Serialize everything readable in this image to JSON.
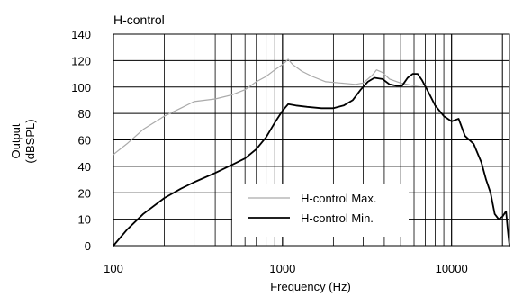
{
  "chart_data": {
    "type": "line",
    "title": "H-control",
    "xlabel": "Frequency (Hz)",
    "ylabel_line1": "Output",
    "ylabel_line2": "(dBSPL)",
    "x_scale": "log",
    "xlim": [
      100,
      22000
    ],
    "x_ticks": [
      {
        "value": 100,
        "label": "100"
      },
      {
        "value": 1000,
        "label": "1000"
      },
      {
        "value": 10000,
        "label": "10000"
      }
    ],
    "y_ticks": [
      {
        "value": 0,
        "label": "0"
      },
      {
        "value": 10,
        "label": "10"
      },
      {
        "value": 20,
        "label": "20"
      },
      {
        "value": 40,
        "label": "40"
      },
      {
        "value": 60,
        "label": "60"
      },
      {
        "value": 80,
        "label": "80"
      },
      {
        "value": 100,
        "label": "100"
      },
      {
        "value": 120,
        "label": "120"
      },
      {
        "value": 140,
        "label": "140"
      }
    ],
    "grid": true,
    "legend_position": "bottom-center",
    "series": [
      {
        "name": "H-control Max.",
        "color": "#aaaaaa",
        "points": [
          [
            100,
            49
          ],
          [
            120,
            57
          ],
          [
            150,
            68
          ],
          [
            200,
            78
          ],
          [
            250,
            84
          ],
          [
            300,
            89
          ],
          [
            400,
            91
          ],
          [
            500,
            94
          ],
          [
            600,
            98
          ],
          [
            700,
            104
          ],
          [
            800,
            108
          ],
          [
            900,
            113
          ],
          [
            1000,
            117
          ],
          [
            1080,
            121
          ],
          [
            1150,
            117
          ],
          [
            1300,
            112
          ],
          [
            1500,
            108
          ],
          [
            1800,
            104
          ],
          [
            2200,
            103
          ],
          [
            2700,
            102
          ],
          [
            3000,
            103
          ],
          [
            3400,
            109
          ],
          [
            3600,
            113
          ],
          [
            3900,
            111
          ],
          [
            4300,
            106
          ],
          [
            5000,
            103
          ],
          [
            6000,
            101
          ],
          [
            7000,
            102
          ]
        ]
      },
      {
        "name": "H-control Min.",
        "color": "#000000",
        "points": [
          [
            100,
            0
          ],
          [
            120,
            6
          ],
          [
            150,
            12
          ],
          [
            200,
            18
          ],
          [
            250,
            23
          ],
          [
            300,
            28
          ],
          [
            400,
            35
          ],
          [
            500,
            41
          ],
          [
            600,
            46
          ],
          [
            700,
            53
          ],
          [
            800,
            62
          ],
          [
            900,
            73
          ],
          [
            1000,
            82
          ],
          [
            1080,
            87
          ],
          [
            1200,
            86
          ],
          [
            1400,
            85
          ],
          [
            1700,
            84
          ],
          [
            2000,
            84
          ],
          [
            2300,
            86
          ],
          [
            2600,
            90
          ],
          [
            2900,
            98
          ],
          [
            3200,
            104
          ],
          [
            3500,
            107
          ],
          [
            3900,
            106
          ],
          [
            4300,
            102
          ],
          [
            4700,
            101
          ],
          [
            5100,
            101
          ],
          [
            5500,
            107
          ],
          [
            5900,
            110
          ],
          [
            6300,
            110
          ],
          [
            6700,
            105
          ],
          [
            7300,
            96
          ],
          [
            8000,
            86
          ],
          [
            9000,
            78
          ],
          [
            10000,
            74
          ],
          [
            11000,
            76
          ],
          [
            12000,
            63
          ],
          [
            13500,
            57
          ],
          [
            15000,
            43
          ],
          [
            16000,
            30
          ],
          [
            17000,
            20
          ],
          [
            18000,
            12
          ],
          [
            19000,
            10
          ],
          [
            20000,
            11
          ],
          [
            21000,
            13
          ],
          [
            21500,
            6
          ],
          [
            22000,
            0
          ]
        ]
      }
    ]
  }
}
